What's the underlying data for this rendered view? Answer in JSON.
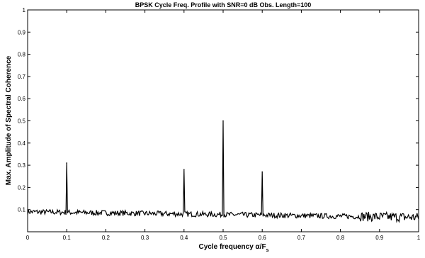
{
  "chart_data": {
    "type": "line",
    "title": "BPSK Cycle Freq. Profile with SNR=0 dB  Obs. Length=100",
    "xlabel": "Cycle frequency α/F",
    "xlabel_subscript": "s",
    "ylabel": "Max. Amplitude of Spectral Coherence",
    "xlim": [
      0,
      1
    ],
    "ylim": [
      0,
      1
    ],
    "x_ticks": [
      "0",
      "0.1",
      "0.2",
      "0.3",
      "0.4",
      "0.5",
      "0.6",
      "0.7",
      "0.8",
      "0.9",
      "1"
    ],
    "y_ticks": [
      "0.1",
      "0.2",
      "0.3",
      "0.4",
      "0.5",
      "0.6",
      "0.7",
      "0.8",
      "0.9",
      "1"
    ],
    "grid": false,
    "line_color": "#000000",
    "series": [
      {
        "peaks": [
          {
            "x": 0.1,
            "y": 0.31
          },
          {
            "x": 0.4,
            "y": 0.28
          },
          {
            "x": 0.5,
            "y": 0.5
          },
          {
            "x": 0.6,
            "y": 0.27
          }
        ],
        "noise_floor_start": 0.09,
        "noise_floor_end": 0.065,
        "noise_amplitude": 0.012
      }
    ]
  }
}
